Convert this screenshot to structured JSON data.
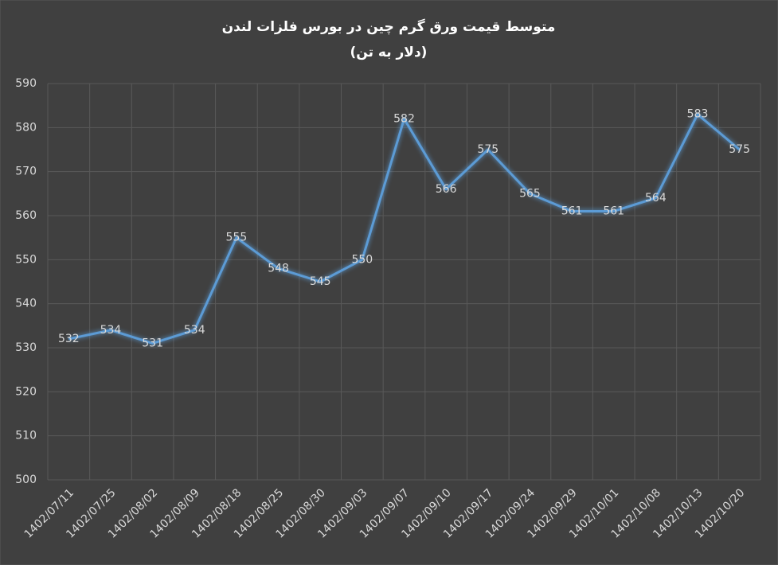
{
  "chart_data": {
    "type": "line",
    "title": "متوسط قیمت ورق گرم چین در بورس فلزات لندن",
    "subtitle": "(دلار به تن)",
    "categories": [
      "1402/07/11",
      "1402/07/25",
      "1402/08/02",
      "1402/08/09",
      "1402/08/18",
      "1402/08/25",
      "1402/08/30",
      "1402/09/03",
      "1402/09/07",
      "1402/09/10",
      "1402/09/17",
      "1402/09/24",
      "1402/09/29",
      "1402/10/01",
      "1402/10/08",
      "1402/10/13",
      "1402/10/20"
    ],
    "values": [
      532,
      534,
      531,
      534,
      555,
      548,
      545,
      550,
      582,
      566,
      575,
      565,
      561,
      561,
      564,
      583,
      575
    ],
    "color": "#5b9bd5",
    "ylim": [
      500,
      590
    ],
    "yticks": [
      500,
      510,
      520,
      530,
      540,
      550,
      560,
      570,
      580,
      590
    ],
    "grid": true
  }
}
